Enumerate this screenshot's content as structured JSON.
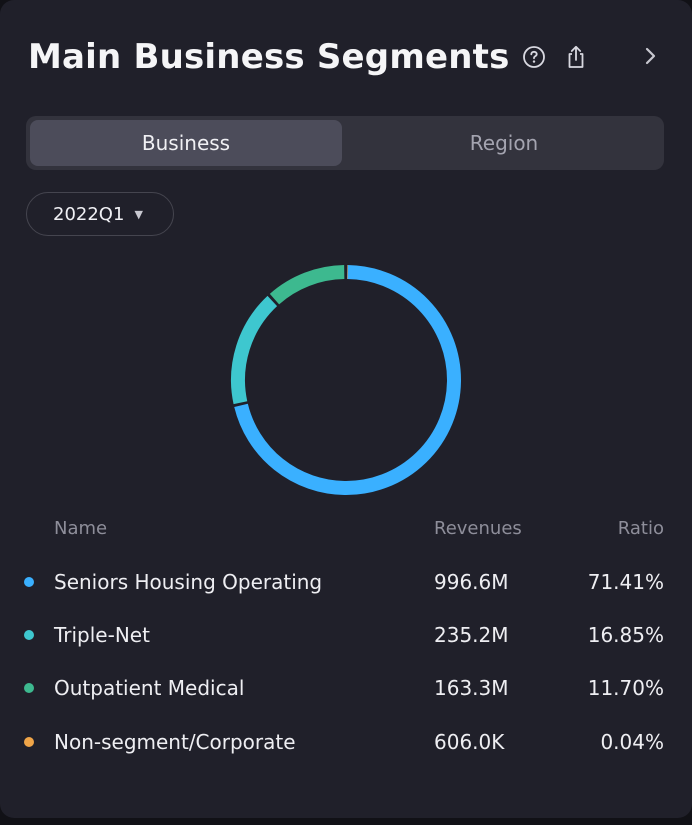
{
  "header": {
    "title": "Main Business Segments",
    "help_icon": "help-circle-icon",
    "share_icon": "share-icon",
    "more_icon": "chevron-right-icon"
  },
  "tabs": {
    "business_label": "Business",
    "region_label": "Region",
    "selected": "Business"
  },
  "period": {
    "value": "2022Q1",
    "dropdown_icon": "caret-down-icon"
  },
  "table": {
    "headers": {
      "name": "Name",
      "revenues": "Revenues",
      "ratio": "Ratio"
    },
    "rows": [
      {
        "name": "Seniors Housing Operating",
        "revenues": "996.6M",
        "ratio": "71.41%",
        "color": "#3ab0ff"
      },
      {
        "name": "Triple-Net",
        "revenues": "235.2M",
        "ratio": "16.85%",
        "color": "#3ec7cf"
      },
      {
        "name": "Outpatient Medical",
        "revenues": "163.3M",
        "ratio": "11.70%",
        "color": "#3db98f"
      },
      {
        "name": "Non-segment/Corporate",
        "revenues": "606.0K",
        "ratio": "0.04%",
        "color": "#f0a548"
      }
    ]
  },
  "chart_data": {
    "type": "pie",
    "categories": [
      "Seniors Housing Operating",
      "Triple-Net",
      "Outpatient Medical",
      "Non-segment/Corporate"
    ],
    "values": [
      71.41,
      16.85,
      11.7,
      0.04
    ],
    "colors": [
      "#3ab0ff",
      "#3ec7cf",
      "#3db98f",
      "#f0a548"
    ],
    "title": "",
    "style": "donut"
  }
}
